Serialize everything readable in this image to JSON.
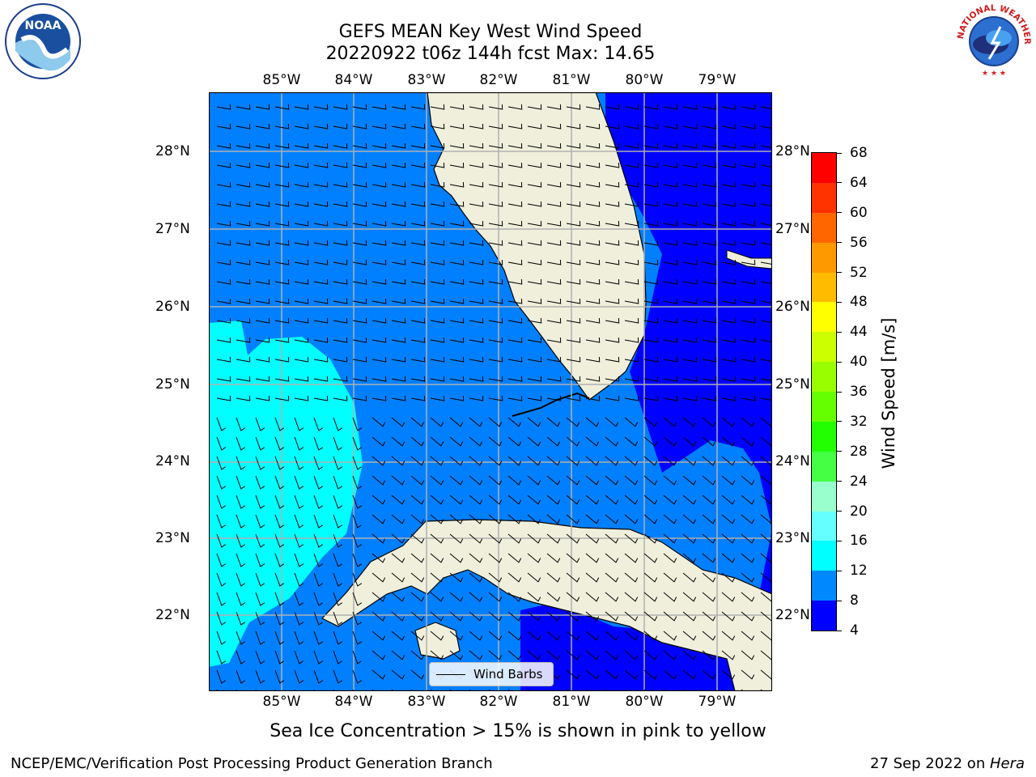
{
  "title": {
    "line1": "GEFS MEAN Key West Wind Speed",
    "line2": "20220922 t06z 144h fcst   Max: 14.65"
  },
  "map": {
    "lon_labels": [
      "85°W",
      "84°W",
      "83°W",
      "82°W",
      "81°W",
      "80°W",
      "79°W"
    ],
    "lat_labels": [
      "28°N",
      "27°N",
      "26°N",
      "25°N",
      "24°N",
      "23°N",
      "22°N"
    ],
    "land_color": "#efefdc",
    "coast_color": "#000000",
    "grid_color": "#b0b0b0"
  },
  "colorbar": {
    "label": "Wind Speed [m/s]",
    "ticks": [
      "68",
      "64",
      "60",
      "56",
      "52",
      "48",
      "44",
      "40",
      "36",
      "32",
      "28",
      "24",
      "20",
      "16",
      "12",
      "8",
      "4"
    ],
    "colors": [
      "#ff0000",
      "#ff3300",
      "#ff6600",
      "#ff9900",
      "#ffbb00",
      "#ffff00",
      "#ccff00",
      "#99ff00",
      "#66ff00",
      "#22ff00",
      "#44ff44",
      "#99ffcc",
      "#66ffff",
      "#00ffff",
      "#0088ff",
      "#0000ff"
    ]
  },
  "legend": {
    "label": "Wind Barbs"
  },
  "bottom_note": "Sea Ice Concentration > 15% is shown in pink to yellow",
  "footer": {
    "left": "NCEP/EMC/Verification Post Processing Product Generation Branch",
    "right_date": "27 Sep 2022 on ",
    "right_host": "Hera"
  },
  "logos": {
    "noaa": "NOAA",
    "nws": "NATIONAL WEATHER SERVICE"
  }
}
